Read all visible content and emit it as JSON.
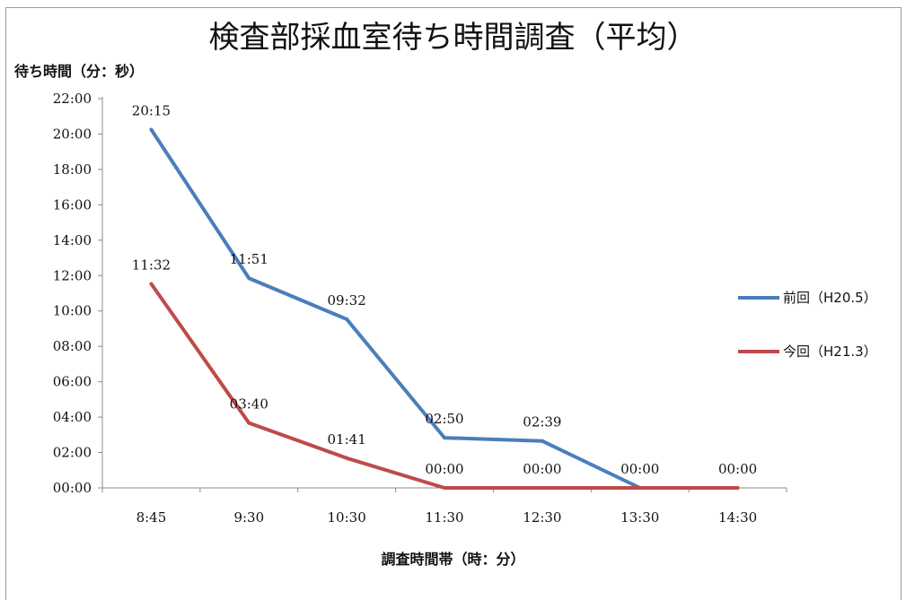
{
  "chart_data": {
    "type": "line",
    "title": "検査部採血室待ち時間調査（平均）",
    "ylabel": "待ち時間（分：秒）",
    "xlabel": "調査時間帯（時：分）",
    "categories": [
      "8:45",
      "9:30",
      "10:30",
      "11:30",
      "12:30",
      "13:30",
      "14:30"
    ],
    "y_ticks": [
      "00:00",
      "02:00",
      "04:00",
      "06:00",
      "08:00",
      "10:00",
      "12:00",
      "14:00",
      "16:00",
      "18:00",
      "20:00",
      "22:00"
    ],
    "ylim_seconds": [
      0,
      1320
    ],
    "grid": false,
    "legend_position": "right",
    "series": [
      {
        "name": "前回（H20.5）",
        "color": "#4a7ebb",
        "values_seconds": [
          1215,
          711,
          572,
          170,
          159,
          0,
          null
        ],
        "labels": [
          "20:15",
          "11:51",
          "09:32",
          "02:50",
          "02:39",
          "00:00",
          null
        ]
      },
      {
        "name": "今回（H21.3）",
        "color": "#be4b48",
        "values_seconds": [
          692,
          220,
          101,
          0,
          0,
          0,
          0
        ],
        "labels": [
          "11:32",
          "03:40",
          "01:41",
          "00:00",
          "00:00",
          null,
          "00:00"
        ]
      }
    ]
  }
}
